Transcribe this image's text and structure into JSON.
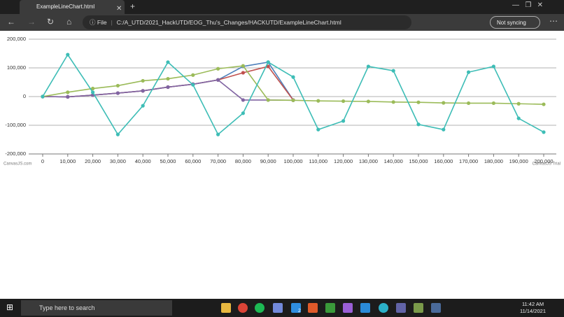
{
  "browser": {
    "tab_title": "ExampleLineChart.html",
    "address_prefix": "File",
    "url": "C:/A_UTD/2021_HackUTD/EOG_Thu's_Changes/HACKUTD/ExampleLineChart.html",
    "sync_status": "Not syncing"
  },
  "chart_data": {
    "type": "line",
    "x": [
      0,
      10000,
      20000,
      30000,
      40000,
      50000,
      60000,
      70000,
      80000,
      90000,
      100000,
      110000,
      120000,
      130000,
      140000,
      150000,
      160000,
      170000,
      180000,
      190000,
      200000
    ],
    "xlim": [
      0,
      200000
    ],
    "xticks": [
      0,
      {
        "value": 10000,
        "label": "10,000"
      },
      {
        "value": 20000,
        "label": "20,000"
      },
      {
        "value": 30000,
        "label": "30,000"
      },
      {
        "value": 40000,
        "label": "40,000"
      },
      {
        "value": 50000,
        "label": "50,000"
      },
      {
        "value": 60000,
        "label": "60,000"
      },
      {
        "value": 70000,
        "label": "70,000"
      },
      {
        "value": 80000,
        "label": "80,000"
      },
      {
        "value": 90000,
        "label": "90,000"
      },
      {
        "value": 100000,
        "label": "100,000"
      },
      {
        "value": 110000,
        "label": "110,000"
      },
      {
        "value": 120000,
        "label": "120,000"
      },
      {
        "value": 130000,
        "label": "130,000"
      },
      {
        "value": 140000,
        "label": "140,000"
      },
      {
        "value": 150000,
        "label": "150,000"
      },
      {
        "value": 160000,
        "label": "160,000"
      },
      {
        "value": 170000,
        "label": "170,000"
      },
      {
        "value": 180000,
        "label": "180,000"
      },
      {
        "value": 190000,
        "label": "190,000"
      },
      {
        "value": 200000,
        "label": "200,000"
      }
    ],
    "ylim": [
      -200000,
      200000
    ],
    "yticks": [
      {
        "value": -200000,
        "label": "-200,000"
      },
      {
        "value": -100000,
        "label": "-100,000"
      },
      0,
      {
        "value": 100000,
        "label": "100,000"
      },
      {
        "value": 200000,
        "label": "200,000"
      }
    ],
    "grid": true,
    "series": [
      {
        "color": "#4f81bc",
        "values": [
          0,
          -1000,
          5000,
          12000,
          20000,
          33000,
          43000,
          58000,
          105000,
          120000,
          -12000,
          null,
          null,
          null,
          null,
          null,
          null,
          null,
          null,
          null,
          null
        ]
      },
      {
        "color": "#c0504e",
        "values": [
          0,
          -1000,
          5000,
          12000,
          20000,
          33000,
          43000,
          58000,
          83000,
          105000,
          -12000,
          null,
          null,
          null,
          null,
          null,
          null,
          null,
          null,
          null,
          null
        ]
      },
      {
        "color": "#8064a2",
        "values": [
          0,
          -1000,
          5000,
          12000,
          20000,
          33000,
          43000,
          58000,
          -12000,
          -12000,
          -13000,
          null,
          null,
          null,
          null,
          null,
          null,
          null,
          null,
          null,
          null
        ]
      },
      {
        "color": "#9bbb59",
        "values": [
          0,
          15000,
          28000,
          38000,
          55000,
          62000,
          75000,
          97000,
          107000,
          -12000,
          -13000,
          -15000,
          -16000,
          -17000,
          -19000,
          -20000,
          -22000,
          -23000,
          -23000,
          -25000,
          -27000
        ]
      },
      {
        "color": "#3dbdb6",
        "values": [
          0,
          146000,
          15000,
          -132000,
          -32000,
          120000,
          41000,
          -132000,
          -58000,
          120000,
          68000,
          -115000,
          -85000,
          105000,
          90000,
          -97000,
          -115000,
          85000,
          105000,
          -76000,
          -124000
        ]
      }
    ]
  },
  "watermarks": [
    "CanvasJS.com",
    "CanvasJS Trial"
  ],
  "taskbar": {
    "search_placeholder": "Type here to search",
    "badge": "2",
    "time": "11:42 AM",
    "date": "11/14/2021"
  }
}
